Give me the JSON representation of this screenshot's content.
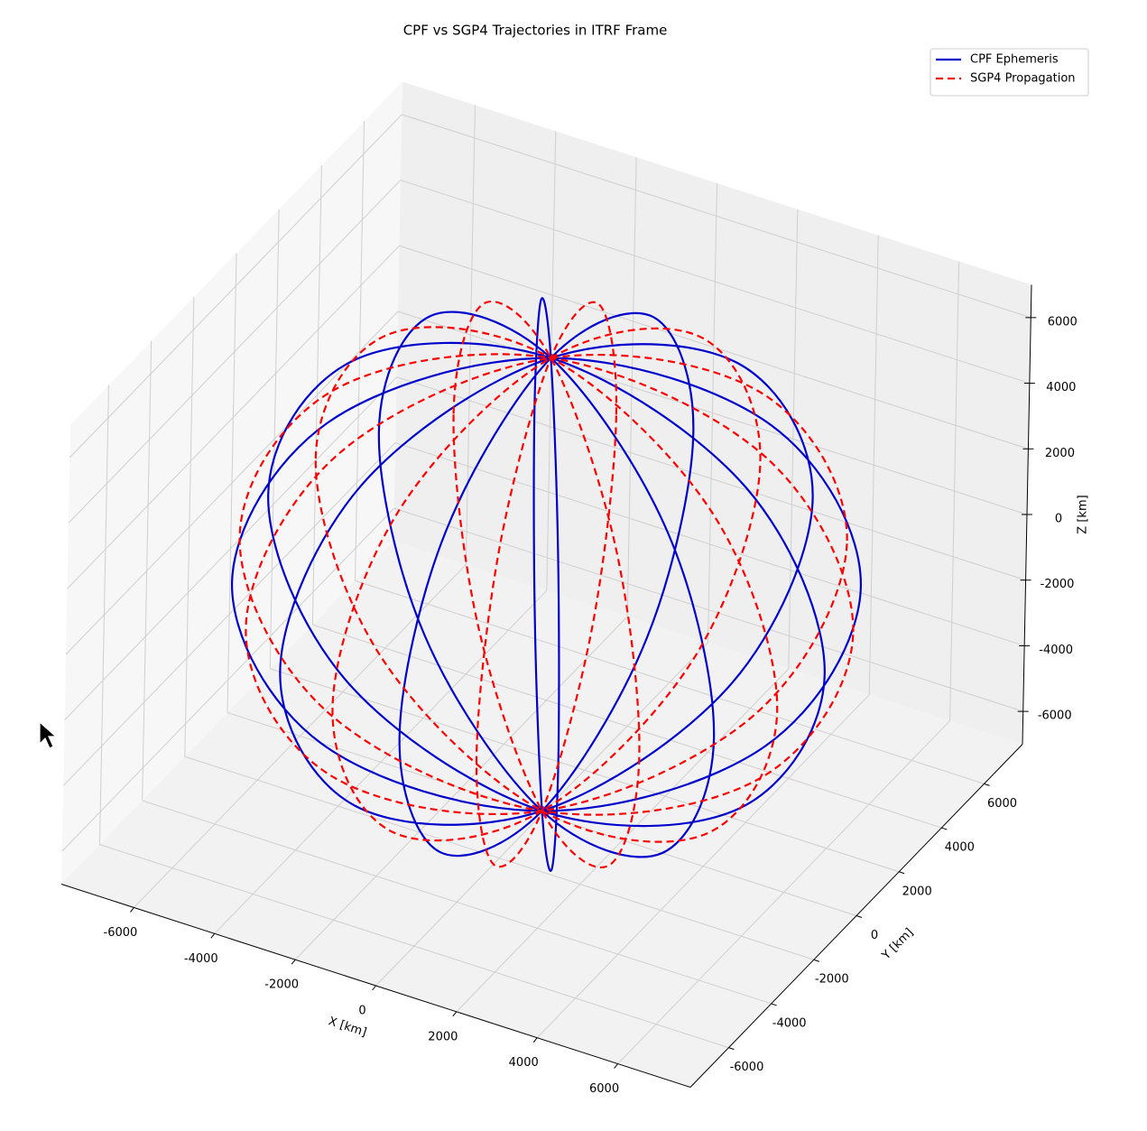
{
  "chart_data": {
    "type": "line3d",
    "title": "CPF vs SGP4 Trajectories in ITRF Frame",
    "xlabel": "X [km]",
    "ylabel": "Y [km]",
    "zlabel": "Z [km]",
    "xlim": [
      -7800,
      7800
    ],
    "ylim": [
      -7800,
      7800
    ],
    "zlim": [
      -7000,
      7000
    ],
    "xticks": [
      -6000,
      -4000,
      -2000,
      0,
      2000,
      4000,
      6000
    ],
    "yticks": [
      -6000,
      -4000,
      -2000,
      0,
      2000,
      4000,
      6000
    ],
    "zticks": [
      -6000,
      -4000,
      -2000,
      0,
      2000,
      4000,
      6000
    ],
    "grid": true,
    "legend": "upper right",
    "series": [
      {
        "name": "CPF Ephemeris",
        "color": "#0000cc",
        "style": "solid",
        "x": [
          6900,
          4879,
          0,
          -4879,
          -6900,
          -4879,
          0,
          4879,
          6900,
          null,
          5976,
          4225,
          0,
          -4225,
          -5976,
          -4225,
          0,
          4225,
          5976,
          null,
          3450,
          2440,
          0,
          -2440,
          -3450,
          -2440,
          0,
          2440,
          3450,
          null,
          0,
          0,
          0,
          0,
          0,
          0,
          0,
          0,
          0,
          null,
          -3450,
          -2440,
          0,
          2440,
          3450,
          2440,
          0,
          -2440,
          -3450,
          null,
          -5976,
          -4225,
          0,
          4225,
          5976,
          4225,
          0,
          -4225,
          -5976
        ],
        "y": [
          0,
          0,
          0,
          0,
          0,
          0,
          0,
          0,
          0,
          null,
          3450,
          2440,
          0,
          -2440,
          -3450,
          -2440,
          0,
          2440,
          3450,
          null,
          5976,
          4225,
          0,
          -4225,
          -5976,
          -4225,
          0,
          4225,
          5976,
          null,
          6900,
          4879,
          0,
          -4879,
          -6900,
          -4879,
          0,
          4879,
          6900,
          null,
          5976,
          4225,
          0,
          -4225,
          -5976,
          -4225,
          0,
          4225,
          5976,
          null,
          3450,
          2440,
          0,
          -2440,
          -3450,
          -2440,
          0,
          2440,
          3450
        ],
        "z": [
          0,
          4879,
          6900,
          4879,
          0,
          -4879,
          -6900,
          -4879,
          0,
          null,
          0,
          4879,
          6900,
          4879,
          0,
          -4879,
          -6900,
          -4879,
          0,
          null,
          0,
          4879,
          6900,
          4879,
          0,
          -4879,
          -6900,
          -4879,
          0,
          null,
          0,
          4879,
          6900,
          4879,
          0,
          -4879,
          -6900,
          -4879,
          0,
          null,
          0,
          4879,
          6900,
          4879,
          0,
          -4879,
          -6900,
          -4879,
          0,
          null,
          0,
          4879,
          6900,
          4879,
          0,
          -4879,
          -6900,
          -4879,
          0
        ]
      },
      {
        "name": "SGP4 Propagation",
        "color": "#ff0000",
        "style": "dashed",
        "x": [
          6665,
          4713,
          0,
          -4713,
          -6665,
          -4713,
          0,
          4713,
          6665,
          null,
          4879,
          3450,
          0,
          -3450,
          -4879,
          -3450,
          0,
          3450,
          4879,
          null,
          1786,
          1263,
          0,
          -1263,
          -1786,
          -1263,
          0,
          1263,
          1786,
          null,
          -1786,
          -1263,
          0,
          1263,
          1786,
          1263,
          0,
          -1263,
          -1786,
          null,
          -4879,
          -3450,
          0,
          3450,
          4879,
          3450,
          0,
          -3450,
          -4879,
          null,
          -6665,
          -4713,
          0,
          4713,
          6665,
          4713,
          0,
          -4713,
          -6665
        ],
        "y": [
          1786,
          1263,
          0,
          -1263,
          -1786,
          -1263,
          0,
          1263,
          1786,
          null,
          4879,
          3450,
          0,
          -3450,
          -4879,
          -3450,
          0,
          3450,
          4879,
          null,
          6665,
          4713,
          0,
          -4713,
          -6665,
          -4713,
          0,
          4713,
          6665,
          null,
          6665,
          4713,
          0,
          -4713,
          -6665,
          -4713,
          0,
          4713,
          6665,
          null,
          4879,
          3450,
          0,
          -3450,
          -4879,
          -3450,
          0,
          3450,
          4879,
          null,
          1786,
          1263,
          0,
          -1263,
          -1786,
          -1263,
          0,
          1263,
          1786
        ],
        "z": [
          0,
          4879,
          6900,
          4879,
          0,
          -4879,
          -6900,
          -4879,
          0,
          null,
          0,
          4879,
          6900,
          4879,
          0,
          -4879,
          -6900,
          -4879,
          0,
          null,
          0,
          4879,
          6900,
          4879,
          0,
          -4879,
          -6900,
          -4879,
          0,
          null,
          0,
          4879,
          6900,
          4879,
          0,
          -4879,
          -6900,
          -4879,
          0,
          null,
          0,
          4879,
          6900,
          4879,
          0,
          -4879,
          -6900,
          -4879,
          0,
          null,
          0,
          4879,
          6900,
          4879,
          0,
          -4879,
          -6900,
          -4879,
          0
        ]
      }
    ]
  }
}
